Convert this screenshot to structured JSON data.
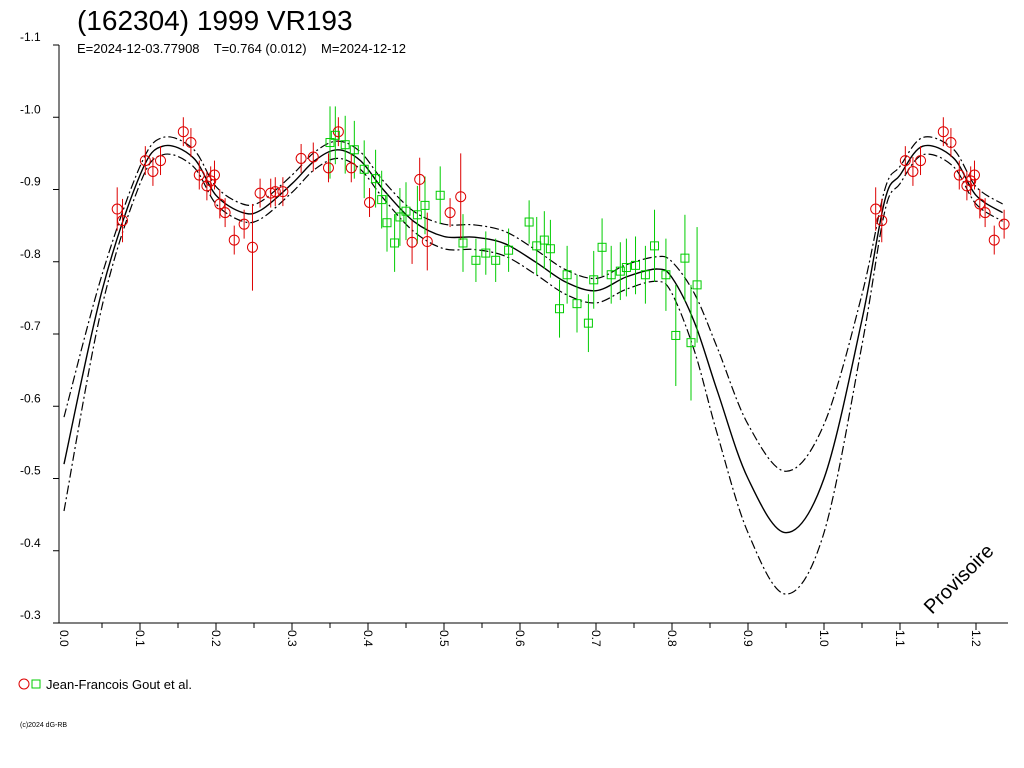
{
  "chart_data": {
    "type": "scatter",
    "title": "(162304) 1999 VR193",
    "subtitle": "E=2024-12-03.77908    T=0.764 (0.012)    M=2024-12-12",
    "watermark": "Provisoire",
    "copyright": "(c)2024 dG-RB",
    "xlim": [
      0.0,
      1.24
    ],
    "ylim": [
      -1.1,
      -0.3
    ],
    "x_ticks": [
      "0.0",
      "0.1",
      "0.2",
      "0.3",
      "0.4",
      "0.5",
      "0.6",
      "0.7",
      "0.8",
      "0.9",
      "1.0",
      "1.1",
      "1.2"
    ],
    "y_ticks": [
      "-1.1",
      "-1.0",
      "-0.9",
      "-0.8",
      "-0.7",
      "-0.6",
      "-0.5",
      "-0.4",
      "-0.3"
    ],
    "legend_label": "Jean-Francois Gout et al.",
    "legend_position": "bottom-left",
    "colors": {
      "series_red": "#dd0000",
      "series_green": "#00cc00",
      "curve": "#000000"
    },
    "curve_fit": {
      "x": [
        0.0,
        0.05,
        0.1,
        0.13,
        0.17,
        0.2,
        0.235,
        0.26,
        0.3,
        0.33,
        0.36,
        0.39,
        0.42,
        0.46,
        0.5,
        0.54,
        0.58,
        0.62,
        0.66,
        0.7,
        0.74,
        0.78,
        0.8,
        0.83,
        0.86,
        0.9,
        0.95,
        1.0,
        1.05,
        1.08,
        1.1,
        1.13,
        1.17,
        1.2,
        1.235
      ],
      "y": [
        -0.52,
        -0.76,
        -0.92,
        -0.96,
        -0.944,
        -0.892,
        -0.868,
        -0.872,
        -0.908,
        -0.94,
        -0.955,
        -0.94,
        -0.9,
        -0.856,
        -0.835,
        -0.834,
        -0.825,
        -0.8,
        -0.772,
        -0.76,
        -0.779,
        -0.79,
        -0.778,
        -0.715,
        -0.62,
        -0.5,
        -0.425,
        -0.5,
        -0.72,
        -0.885,
        -0.92,
        -0.96,
        -0.944,
        -0.892,
        -0.868
      ],
      "upper_offset": [
        -0.065,
        -0.022,
        -0.012,
        -0.012,
        -0.012,
        -0.012,
        -0.012,
        -0.012,
        -0.012,
        -0.012,
        -0.012,
        -0.012,
        -0.012,
        -0.014,
        -0.017,
        -0.017,
        -0.017,
        -0.017,
        -0.017,
        -0.017,
        -0.017,
        -0.017,
        -0.022,
        -0.04,
        -0.06,
        -0.075,
        -0.085,
        -0.075,
        -0.035,
        -0.015,
        -0.012,
        -0.012,
        -0.012,
        -0.012,
        -0.012
      ],
      "lower_offset": [
        0.065,
        0.022,
        0.012,
        0.012,
        0.012,
        0.012,
        0.012,
        0.012,
        0.012,
        0.012,
        0.012,
        0.012,
        0.012,
        0.014,
        0.017,
        0.017,
        0.017,
        0.017,
        0.017,
        0.017,
        0.017,
        0.017,
        0.022,
        0.04,
        0.06,
        0.075,
        0.085,
        0.075,
        0.035,
        0.015,
        0.012,
        0.012,
        0.012,
        0.012,
        0.012
      ]
    },
    "series": [
      {
        "color": "red",
        "marker": "circle",
        "points": [
          [
            0.07,
            -0.873,
            0.03
          ],
          [
            0.077,
            -0.857,
            0.03
          ],
          [
            0.107,
            -0.94,
            0.02
          ],
          [
            0.117,
            -0.925,
            0.02
          ],
          [
            0.127,
            -0.94,
            0.02
          ],
          [
            0.157,
            -0.98,
            0.02
          ],
          [
            0.167,
            -0.965,
            0.02
          ],
          [
            0.178,
            -0.92,
            0.02
          ],
          [
            0.188,
            -0.905,
            0.02
          ],
          [
            0.193,
            -0.912,
            0.02
          ],
          [
            0.198,
            -0.92,
            0.02
          ],
          [
            0.205,
            -0.88,
            0.02
          ],
          [
            0.212,
            -0.868,
            0.02
          ],
          [
            0.224,
            -0.83,
            0.02
          ],
          [
            0.237,
            -0.852,
            0.02
          ],
          [
            0.248,
            -0.82,
            0.06
          ],
          [
            0.258,
            -0.895,
            0.02
          ],
          [
            0.272,
            -0.895,
            0.02
          ],
          [
            0.278,
            -0.897,
            0.02
          ],
          [
            0.288,
            -0.897,
            0.02
          ],
          [
            0.312,
            -0.943,
            0.02
          ],
          [
            0.328,
            -0.945,
            0.02
          ],
          [
            0.348,
            -0.93,
            0.02
          ],
          [
            0.361,
            -0.98,
            0.02
          ],
          [
            0.378,
            -0.93,
            0.02
          ],
          [
            0.402,
            -0.882,
            0.02
          ],
          [
            0.458,
            -0.827,
            0.03
          ],
          [
            0.468,
            -0.914,
            0.03
          ],
          [
            0.478,
            -0.828,
            0.04
          ],
          [
            0.508,
            -0.868,
            0.02
          ],
          [
            0.522,
            -0.89,
            0.06
          ],
          [
            1.068,
            -0.873,
            0.03
          ],
          [
            1.076,
            -0.857,
            0.03
          ],
          [
            1.107,
            -0.94,
            0.02
          ],
          [
            1.117,
            -0.925,
            0.02
          ],
          [
            1.127,
            -0.94,
            0.02
          ],
          [
            1.157,
            -0.98,
            0.02
          ],
          [
            1.167,
            -0.965,
            0.02
          ],
          [
            1.178,
            -0.92,
            0.02
          ],
          [
            1.188,
            -0.905,
            0.02
          ],
          [
            1.193,
            -0.912,
            0.02
          ],
          [
            1.198,
            -0.92,
            0.02
          ],
          [
            1.205,
            -0.88,
            0.02
          ],
          [
            1.212,
            -0.868,
            0.02
          ],
          [
            1.224,
            -0.83,
            0.02
          ],
          [
            1.237,
            -0.852,
            0.02
          ]
        ]
      },
      {
        "color": "green",
        "marker": "square",
        "points": [
          [
            0.35,
            -0.965,
            0.05
          ],
          [
            0.357,
            -0.975,
            0.04
          ],
          [
            0.37,
            -0.962,
            0.04
          ],
          [
            0.382,
            -0.955,
            0.04
          ],
          [
            0.395,
            -0.928,
            0.04
          ],
          [
            0.41,
            -0.915,
            0.04
          ],
          [
            0.418,
            -0.886,
            0.04
          ],
          [
            0.425,
            -0.854,
            0.04
          ],
          [
            0.435,
            -0.826,
            0.04
          ],
          [
            0.442,
            -0.862,
            0.04
          ],
          [
            0.45,
            -0.87,
            0.04
          ],
          [
            0.465,
            -0.865,
            0.04
          ],
          [
            0.475,
            -0.878,
            0.04
          ],
          [
            0.495,
            -0.892,
            0.04
          ],
          [
            0.525,
            -0.826,
            0.04
          ],
          [
            0.542,
            -0.802,
            0.03
          ],
          [
            0.555,
            -0.812,
            0.03
          ],
          [
            0.568,
            -0.802,
            0.03
          ],
          [
            0.585,
            -0.816,
            0.03
          ],
          [
            0.612,
            -0.855,
            0.03
          ],
          [
            0.622,
            -0.822,
            0.04
          ],
          [
            0.632,
            -0.83,
            0.04
          ],
          [
            0.64,
            -0.818,
            0.04
          ],
          [
            0.652,
            -0.735,
            0.04
          ],
          [
            0.662,
            -0.782,
            0.04
          ],
          [
            0.675,
            -0.742,
            0.04
          ],
          [
            0.69,
            -0.715,
            0.04
          ],
          [
            0.697,
            -0.775,
            0.04
          ],
          [
            0.708,
            -0.82,
            0.04
          ],
          [
            0.72,
            -0.782,
            0.04
          ],
          [
            0.732,
            -0.787,
            0.04
          ],
          [
            0.74,
            -0.792,
            0.04
          ],
          [
            0.752,
            -0.795,
            0.04
          ],
          [
            0.765,
            -0.782,
            0.04
          ],
          [
            0.777,
            -0.822,
            0.05
          ],
          [
            0.792,
            -0.782,
            0.05
          ],
          [
            0.805,
            -0.698,
            0.07
          ],
          [
            0.817,
            -0.805,
            0.06
          ],
          [
            0.825,
            -0.688,
            0.08
          ],
          [
            0.833,
            -0.768,
            0.08
          ]
        ]
      }
    ]
  }
}
